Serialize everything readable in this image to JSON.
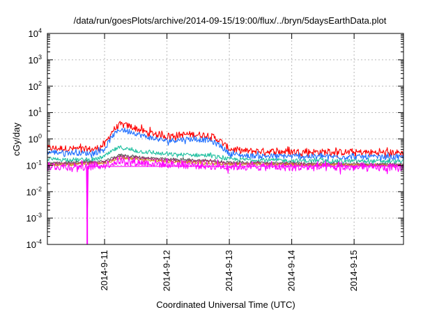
{
  "chart_data": {
    "type": "line",
    "title": "/data/run/goesPlots/archive/2014-09-15/19:00/flux/../bryn/5daysEarthData.plot",
    "xlabel": "Coordinated Universal Time (UTC)",
    "ylabel": "cGy/day",
    "y_scale": "log",
    "ylim": [
      0.0001,
      10000
    ],
    "y_ticks": [
      {
        "value": 0.0001,
        "base": "10",
        "exp": "-4"
      },
      {
        "value": 0.001,
        "base": "10",
        "exp": "-3"
      },
      {
        "value": 0.01,
        "base": "10",
        "exp": "-2"
      },
      {
        "value": 0.1,
        "base": "10",
        "exp": "-1"
      },
      {
        "value": 1,
        "base": "10",
        "exp": "0"
      },
      {
        "value": 10,
        "base": "10",
        "exp": "1"
      },
      {
        "value": 100,
        "base": "10",
        "exp": "2"
      },
      {
        "value": 1000,
        "base": "10",
        "exp": "3"
      },
      {
        "value": 10000,
        "base": "10",
        "exp": "4"
      }
    ],
    "xlim": [
      "2014-09-10T02:00",
      "2014-09-15T19:00"
    ],
    "x_ticks": [
      {
        "value": "2014-09-11T00:00",
        "label": "2014-9-11"
      },
      {
        "value": "2014-09-12T00:00",
        "label": "2014-9-12"
      },
      {
        "value": "2014-09-13T00:00",
        "label": "2014-9-13"
      },
      {
        "value": "2014-09-14T00:00",
        "label": "2014-9-14"
      },
      {
        "value": "2014-09-15T00:00",
        "label": "2014-9-15"
      }
    ],
    "grid": true,
    "series": [
      {
        "color": "#ff0000",
        "noise": 0.25,
        "points": [
          [
            "2014-09-10T02:00",
            0.45
          ],
          [
            "2014-09-10T20:00",
            0.4
          ],
          [
            "2014-09-11T00:00",
            0.6
          ],
          [
            "2014-09-11T03:00",
            2.0
          ],
          [
            "2014-09-11T06:00",
            3.5
          ],
          [
            "2014-09-11T10:00",
            3.0
          ],
          [
            "2014-09-11T16:00",
            1.8
          ],
          [
            "2014-09-12T00:00",
            1.3
          ],
          [
            "2014-09-12T08:00",
            1.5
          ],
          [
            "2014-09-12T16:00",
            1.4
          ],
          [
            "2014-09-12T20:00",
            0.9
          ],
          [
            "2014-09-13T00:00",
            0.42
          ],
          [
            "2014-09-13T06:00",
            0.35
          ],
          [
            "2014-09-14T00:00",
            0.33
          ],
          [
            "2014-09-15T00:00",
            0.31
          ],
          [
            "2014-09-15T19:00",
            0.3
          ]
        ]
      },
      {
        "color": "#1f6fff",
        "noise": 0.2,
        "points": [
          [
            "2014-09-10T02:00",
            0.32
          ],
          [
            "2014-09-10T20:00",
            0.28
          ],
          [
            "2014-09-11T00:00",
            0.42
          ],
          [
            "2014-09-11T03:00",
            1.3
          ],
          [
            "2014-09-11T06:00",
            2.3
          ],
          [
            "2014-09-11T10:00",
            1.9
          ],
          [
            "2014-09-11T16:00",
            1.2
          ],
          [
            "2014-09-12T00:00",
            0.85
          ],
          [
            "2014-09-12T08:00",
            1.0
          ],
          [
            "2014-09-12T16:00",
            0.9
          ],
          [
            "2014-09-12T20:00",
            0.6
          ],
          [
            "2014-09-13T00:00",
            0.28
          ],
          [
            "2014-09-13T06:00",
            0.23
          ],
          [
            "2014-09-14T00:00",
            0.22
          ],
          [
            "2014-09-15T00:00",
            0.21
          ],
          [
            "2014-09-15T19:00",
            0.2
          ]
        ]
      },
      {
        "color": "#20c0a0",
        "noise": 0.15,
        "points": [
          [
            "2014-09-10T02:00",
            0.17
          ],
          [
            "2014-09-10T20:00",
            0.16
          ],
          [
            "2014-09-11T00:00",
            0.22
          ],
          [
            "2014-09-11T04:00",
            0.4
          ],
          [
            "2014-09-11T06:00",
            0.48
          ],
          [
            "2014-09-11T12:00",
            0.35
          ],
          [
            "2014-09-12T00:00",
            0.26
          ],
          [
            "2014-09-12T16:00",
            0.24
          ],
          [
            "2014-09-13T00:00",
            0.17
          ],
          [
            "2014-09-14T00:00",
            0.15
          ],
          [
            "2014-09-15T19:00",
            0.14
          ]
        ]
      },
      {
        "color": "#606060",
        "noise": 0.1,
        "points": [
          [
            "2014-09-10T02:00",
            0.12
          ],
          [
            "2014-09-11T00:00",
            0.14
          ],
          [
            "2014-09-11T06:00",
            0.25
          ],
          [
            "2014-09-11T12:00",
            0.21
          ],
          [
            "2014-09-12T00:00",
            0.17
          ],
          [
            "2014-09-12T16:00",
            0.15
          ],
          [
            "2014-09-13T00:00",
            0.13
          ],
          [
            "2014-09-14T00:00",
            0.12
          ],
          [
            "2014-09-15T19:00",
            0.11
          ]
        ]
      },
      {
        "color": "#b0206a",
        "noise": 0.1,
        "points": [
          [
            "2014-09-10T02:00",
            0.11
          ],
          [
            "2014-09-11T00:00",
            0.13
          ],
          [
            "2014-09-11T06:00",
            0.22
          ],
          [
            "2014-09-11T12:00",
            0.19
          ],
          [
            "2014-09-12T00:00",
            0.15
          ],
          [
            "2014-09-12T16:00",
            0.14
          ],
          [
            "2014-09-13T00:00",
            0.12
          ],
          [
            "2014-09-14T00:00",
            0.11
          ],
          [
            "2014-09-15T19:00",
            0.1
          ]
        ]
      },
      {
        "color": "#d49020",
        "noise": 0.08,
        "points": [
          [
            "2014-09-10T02:00",
            0.1
          ],
          [
            "2014-09-11T00:00",
            0.12
          ],
          [
            "2014-09-11T06:00",
            0.18
          ],
          [
            "2014-09-12T00:00",
            0.14
          ],
          [
            "2014-09-13T00:00",
            0.11
          ],
          [
            "2014-09-15T19:00",
            0.1
          ]
        ]
      },
      {
        "color": "#ff00ff",
        "noise": 0.3,
        "points": [
          [
            "2014-09-10T02:00",
            0.09
          ],
          [
            "2014-09-10T17:00",
            0.09
          ],
          [
            "2014-09-10T17:20",
            0.0001
          ],
          [
            "2014-09-10T17:40",
            0.09
          ],
          [
            "2014-09-11T00:00",
            0.1
          ],
          [
            "2014-09-11T06:00",
            0.15
          ],
          [
            "2014-09-11T12:00",
            0.13
          ],
          [
            "2014-09-12T00:00",
            0.11
          ],
          [
            "2014-09-13T00:00",
            0.09
          ],
          [
            "2014-09-14T00:00",
            0.085
          ],
          [
            "2014-09-15T19:00",
            0.08
          ]
        ]
      }
    ]
  }
}
